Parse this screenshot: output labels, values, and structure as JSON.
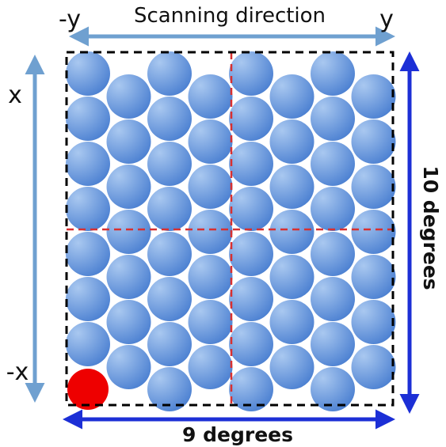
{
  "labels": {
    "top_left": "-y",
    "top_right": "y",
    "scan_direction": "Scanning direction",
    "left_top": "x",
    "left_bottom": "-x",
    "width": "9 degrees",
    "height": "10 degrees"
  },
  "colors": {
    "circle_light": "#a9c8f0",
    "circle_dark": "#4a7fd1",
    "highlight_circle": "#ee0000",
    "scan_arrow": "#6fa0d0",
    "extent_arrow": "#1c2fd6",
    "frame": "#000000",
    "divider": "#d83030"
  },
  "grid": {
    "columns": 8,
    "circles_per_column": [
      8,
      7,
      8,
      7,
      8,
      7,
      8,
      7
    ],
    "highlighted": "bottom-left"
  }
}
